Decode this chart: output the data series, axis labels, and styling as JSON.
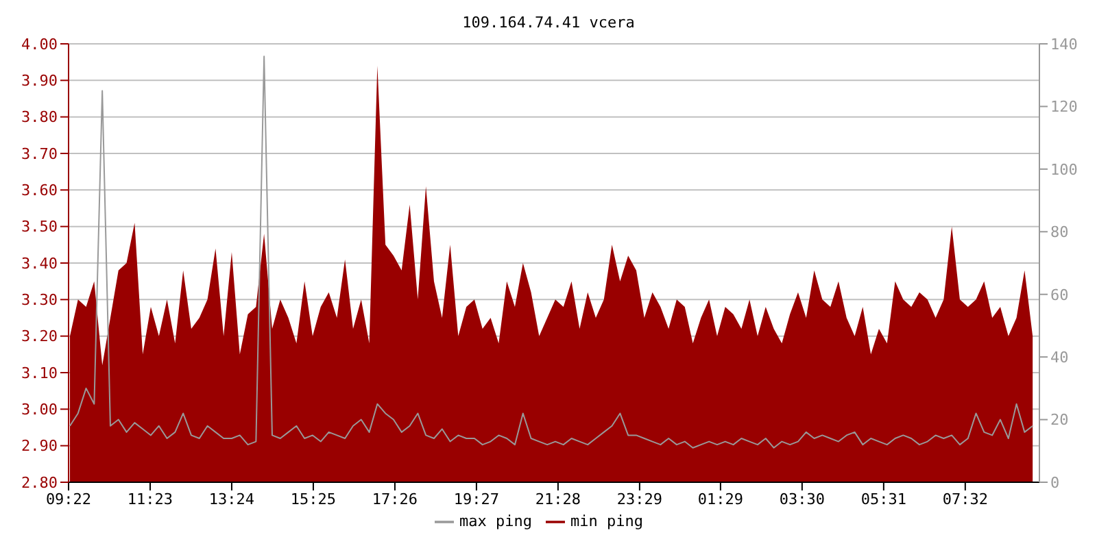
{
  "chart_data": {
    "type": "area",
    "title": "109.164.74.41 vcera",
    "x": [
      "--01-01T09:24",
      "--01-01T09:36",
      "--01-01T09:48",
      "--01-01T10:00",
      "--01-01T10:12",
      "--01-01T10:24",
      "--01-01T10:36",
      "--01-01T10:48",
      "--01-01T11:00",
      "--01-01T11:12",
      "--01-01T11:24",
      "--01-01T11:36",
      "--01-01T11:48",
      "--01-01T12:00",
      "--01-01T12:12",
      "--01-01T12:24",
      "--01-01T12:36",
      "--01-01T12:48",
      "--01-01T13:00",
      "--01-01T13:12",
      "--01-01T13:24",
      "--01-01T13:36",
      "--01-01T13:48",
      "--01-01T14:00",
      "--01-01T14:12",
      "--01-01T14:24",
      "--01-01T14:36",
      "--01-01T14:48",
      "--01-01T15:00",
      "--01-01T15:12",
      "--01-01T15:24",
      "--01-01T15:36",
      "--01-01T15:48",
      "--01-01T16:00",
      "--01-01T16:12",
      "--01-01T16:24",
      "--01-01T16:36",
      "--01-01T16:48",
      "--01-01T17:00",
      "--01-01T17:12",
      "--01-01T17:24",
      "--01-01T17:36",
      "--01-01T17:48",
      "--01-01T18:00",
      "--01-01T18:12",
      "--01-01T18:24",
      "--01-01T18:36",
      "--01-01T18:48",
      "--01-01T19:00",
      "--01-01T19:12",
      "--01-01T19:24",
      "--01-01T19:36",
      "--01-01T19:48",
      "--01-01T20:00",
      "--01-01T20:12",
      "--01-01T20:24",
      "--01-01T20:36",
      "--01-01T20:48",
      "--01-01T21:00",
      "--01-01T21:12",
      "--01-01T21:24",
      "--01-01T21:36",
      "--01-01T21:48",
      "--01-01T22:00",
      "--01-01T22:12",
      "--01-01T22:24",
      "--01-01T22:36",
      "--01-01T22:48",
      "--01-01T23:00",
      "--01-01T23:12",
      "--01-01T23:24",
      "--01-01T23:36",
      "--01-01T23:48",
      "--01-02T00:00",
      "--01-02T00:12",
      "--01-02T00:24",
      "--01-02T00:36",
      "--01-02T00:48",
      "--01-02T01:00",
      "--01-02T01:12",
      "--01-02T01:24",
      "--01-02T01:36",
      "--01-02T01:48",
      "--01-02T02:00",
      "--01-02T02:12",
      "--01-02T02:24",
      "--01-02T02:36",
      "--01-02T02:48",
      "--01-02T03:00",
      "--01-02T03:12",
      "--01-02T03:24",
      "--01-02T03:36",
      "--01-02T03:48",
      "--01-02T04:00",
      "--01-02T04:12",
      "--01-02T04:24",
      "--01-02T04:36",
      "--01-02T04:48",
      "--01-02T05:00",
      "--01-02T05:12",
      "--01-02T05:24",
      "--01-02T05:36",
      "--01-02T05:48",
      "--01-02T06:00",
      "--01-02T06:12",
      "--01-02T06:24",
      "--01-02T06:36",
      "--01-02T06:48",
      "--01-02T07:00",
      "--01-02T07:12",
      "--01-02T07:24",
      "--01-02T07:36",
      "--01-02T07:48",
      "--01-02T08:00",
      "--01-02T08:12",
      "--01-02T08:24",
      "--01-02T08:36",
      "--01-02T08:48",
      "--01-02T09:00",
      "--01-02T09:12"
    ],
    "xlim": [
      "--01-01T09:22",
      "--01-02T09:22"
    ],
    "xticks": [
      {
        "value": "--01-01T09:22",
        "label": "09:22"
      },
      {
        "value": "--01-01T11:23",
        "label": "11:23"
      },
      {
        "value": "--01-01T13:24",
        "label": "13:24"
      },
      {
        "value": "--01-01T15:25",
        "label": "15:25"
      },
      {
        "value": "--01-01T17:26",
        "label": "17:26"
      },
      {
        "value": "--01-01T19:27",
        "label": "19:27"
      },
      {
        "value": "--01-01T21:28",
        "label": "21:28"
      },
      {
        "value": "--01-01T23:29",
        "label": "23:29"
      },
      {
        "value": "--01-02T01:29",
        "label": "01:29"
      },
      {
        "value": "--01-02T03:30",
        "label": "03:30"
      },
      {
        "value": "--01-02T05:31",
        "label": "05:31"
      },
      {
        "value": "--01-02T07:32",
        "label": "07:32"
      }
    ],
    "ylim": [
      2.8,
      4.0
    ],
    "yticks": [
      {
        "value": 2.8,
        "label": "2.80"
      },
      {
        "value": 2.9,
        "label": "2.90"
      },
      {
        "value": 3.0,
        "label": "3.00"
      },
      {
        "value": 3.1,
        "label": "3.10"
      },
      {
        "value": 3.2,
        "label": "3.20"
      },
      {
        "value": 3.3,
        "label": "3.30"
      },
      {
        "value": 3.4,
        "label": "3.40"
      },
      {
        "value": 3.5,
        "label": "3.50"
      },
      {
        "value": 3.6,
        "label": "3.60"
      },
      {
        "value": 3.7,
        "label": "3.70"
      },
      {
        "value": 3.8,
        "label": "3.80"
      },
      {
        "value": 3.9,
        "label": "3.90"
      },
      {
        "value": 4.0,
        "label": "4.00"
      }
    ],
    "y2lim": [
      0,
      140
    ],
    "y2ticks": [
      0,
      20,
      40,
      60,
      80,
      100,
      120,
      140
    ],
    "grid": "y",
    "legend": "bottom",
    "marker": "none",
    "series": [
      {
        "name": "min ping",
        "color": "#990000",
        "values": [
          3.2,
          3.3,
          3.28,
          3.35,
          3.12,
          3.25,
          3.38,
          3.4,
          3.51,
          3.15,
          3.28,
          3.2,
          3.3,
          3.18,
          3.38,
          3.22,
          3.25,
          3.3,
          3.44,
          3.2,
          3.43,
          3.15,
          3.26,
          3.28,
          3.48,
          3.22,
          3.3,
          3.25,
          3.18,
          3.35,
          3.2,
          3.28,
          3.32,
          3.25,
          3.41,
          3.22,
          3.3,
          3.18,
          3.94,
          3.45,
          3.42,
          3.38,
          3.56,
          3.3,
          3.61,
          3.35,
          3.25,
          3.45,
          3.2,
          3.28,
          3.3,
          3.22,
          3.25,
          3.18,
          3.35,
          3.28,
          3.4,
          3.32,
          3.2,
          3.25,
          3.3,
          3.28,
          3.35,
          3.22,
          3.32,
          3.25,
          3.3,
          3.45,
          3.35,
          3.42,
          3.38,
          3.25,
          3.32,
          3.28,
          3.22,
          3.3,
          3.28,
          3.18,
          3.25,
          3.3,
          3.2,
          3.28,
          3.26,
          3.22,
          3.3,
          3.2,
          3.28,
          3.22,
          3.18,
          3.26,
          3.32,
          3.25,
          3.38,
          3.3,
          3.28,
          3.35,
          3.25,
          3.2,
          3.28,
          3.15,
          3.22,
          3.18,
          3.35,
          3.3,
          3.28,
          3.32,
          3.3,
          3.25,
          3.3,
          3.5,
          3.3,
          3.28,
          3.3,
          3.35,
          3.25,
          3.28,
          3.2,
          3.25,
          3.38,
          3.2
        ]
      },
      {
        "name": "max ping",
        "color": "#999999",
        "type": "line",
        "axis": "y2",
        "values": [
          18,
          22,
          30,
          25,
          125,
          18,
          20,
          16,
          19,
          17,
          15,
          18,
          14,
          16,
          22,
          15,
          14,
          18,
          16,
          14,
          14,
          15,
          12,
          13,
          136,
          15,
          14,
          16,
          18,
          14,
          15,
          13,
          16,
          15,
          14,
          18,
          20,
          16,
          25,
          22,
          20,
          16,
          18,
          22,
          15,
          14,
          17,
          13,
          15,
          14,
          14,
          12,
          13,
          15,
          14,
          12,
          22,
          14,
          13,
          12,
          13,
          12,
          14,
          13,
          12,
          14,
          16,
          18,
          22,
          15,
          15,
          14,
          13,
          12,
          14,
          12,
          13,
          11,
          12,
          13,
          12,
          13,
          12,
          14,
          13,
          12,
          14,
          11,
          13,
          12,
          13,
          16,
          14,
          15,
          14,
          13,
          15,
          16,
          12,
          14,
          13,
          12,
          14,
          15,
          14,
          12,
          13,
          15,
          14,
          15,
          12,
          14,
          22,
          16,
          15,
          20,
          14,
          25,
          16,
          18
        ]
      }
    ]
  }
}
